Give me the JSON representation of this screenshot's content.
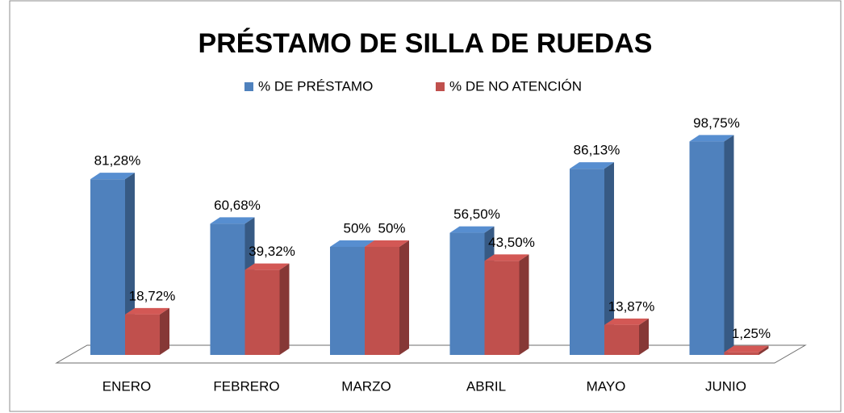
{
  "chart_data": {
    "type": "bar3d",
    "title": "PRÉSTAMO DE SILLA DE RUEDAS",
    "categories": [
      "ENERO",
      "FEBRERO",
      "MARZO",
      "ABRIL",
      "MAYO",
      "JUNIO"
    ],
    "series": [
      {
        "name": "% DE PRÉSTAMO",
        "color": "#4f81bd",
        "values": [
          81.28,
          60.68,
          50,
          56.5,
          86.13,
          98.75
        ],
        "value_labels": [
          "81,28%",
          "60,68%",
          "50%",
          "56,50%",
          "86,13%",
          "98,75%"
        ]
      },
      {
        "name": "% DE NO ATENCIÓN",
        "color": "#c0504d",
        "values": [
          18.72,
          39.32,
          50,
          43.5,
          13.87,
          1.25
        ],
        "value_labels": [
          "18,72%",
          "39,32%",
          "50%",
          "43,50%",
          "13,87%",
          "1,25%"
        ]
      }
    ],
    "legend": "top"
  }
}
